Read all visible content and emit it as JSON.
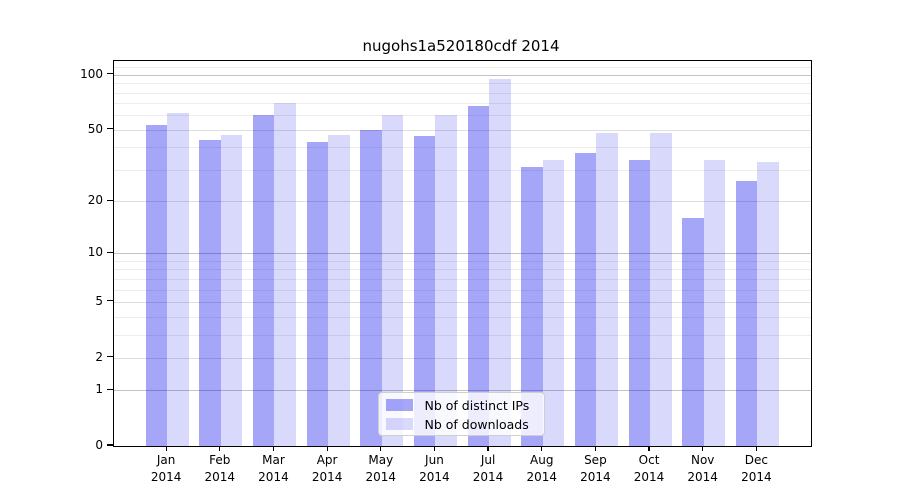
{
  "chart_data": {
    "type": "bar",
    "title": "nugohs1a520180cdf 2014",
    "categories": [
      "Jan",
      "Feb",
      "Mar",
      "Apr",
      "May",
      "Jun",
      "Jul",
      "Aug",
      "Sep",
      "Oct",
      "Nov",
      "Dec"
    ],
    "category_year": "2014",
    "series": [
      {
        "name": "Nb of distinct IPs",
        "color": "rgba(0,0,238,0.35)",
        "values": [
          53,
          44,
          60,
          43,
          50,
          46,
          68,
          31,
          37,
          34,
          16,
          26
        ]
      },
      {
        "name": "Nb of downloads",
        "color": "rgba(0,0,238,0.15)",
        "values": [
          62,
          47,
          70,
          47,
          60,
          60,
          95,
          34,
          48,
          48,
          34,
          33
        ]
      }
    ],
    "yscale": "log10(1+value)",
    "ylim": [
      0,
      118
    ],
    "yticks": [
      0,
      1,
      2,
      5,
      10,
      20,
      50,
      100
    ],
    "gridlines": {
      "major": [
        1,
        10,
        100
      ],
      "labeled_minor": [
        2,
        5,
        20,
        50
      ],
      "minor": [
        3,
        4,
        6,
        7,
        8,
        9,
        30,
        40,
        60,
        70,
        80,
        90,
        110
      ]
    },
    "legend_position": "bottom-center",
    "grid_on": true
  },
  "colors": {
    "background": "#ffffff",
    "axis": "#000000",
    "ips_bar_rendered": "#a6a6f9",
    "downloads_bar_rendered": "#dcdcfb",
    "grid_major": "#c3c3c3",
    "grid_minor": "#ededed",
    "legend_border": "#cfcfcf"
  }
}
